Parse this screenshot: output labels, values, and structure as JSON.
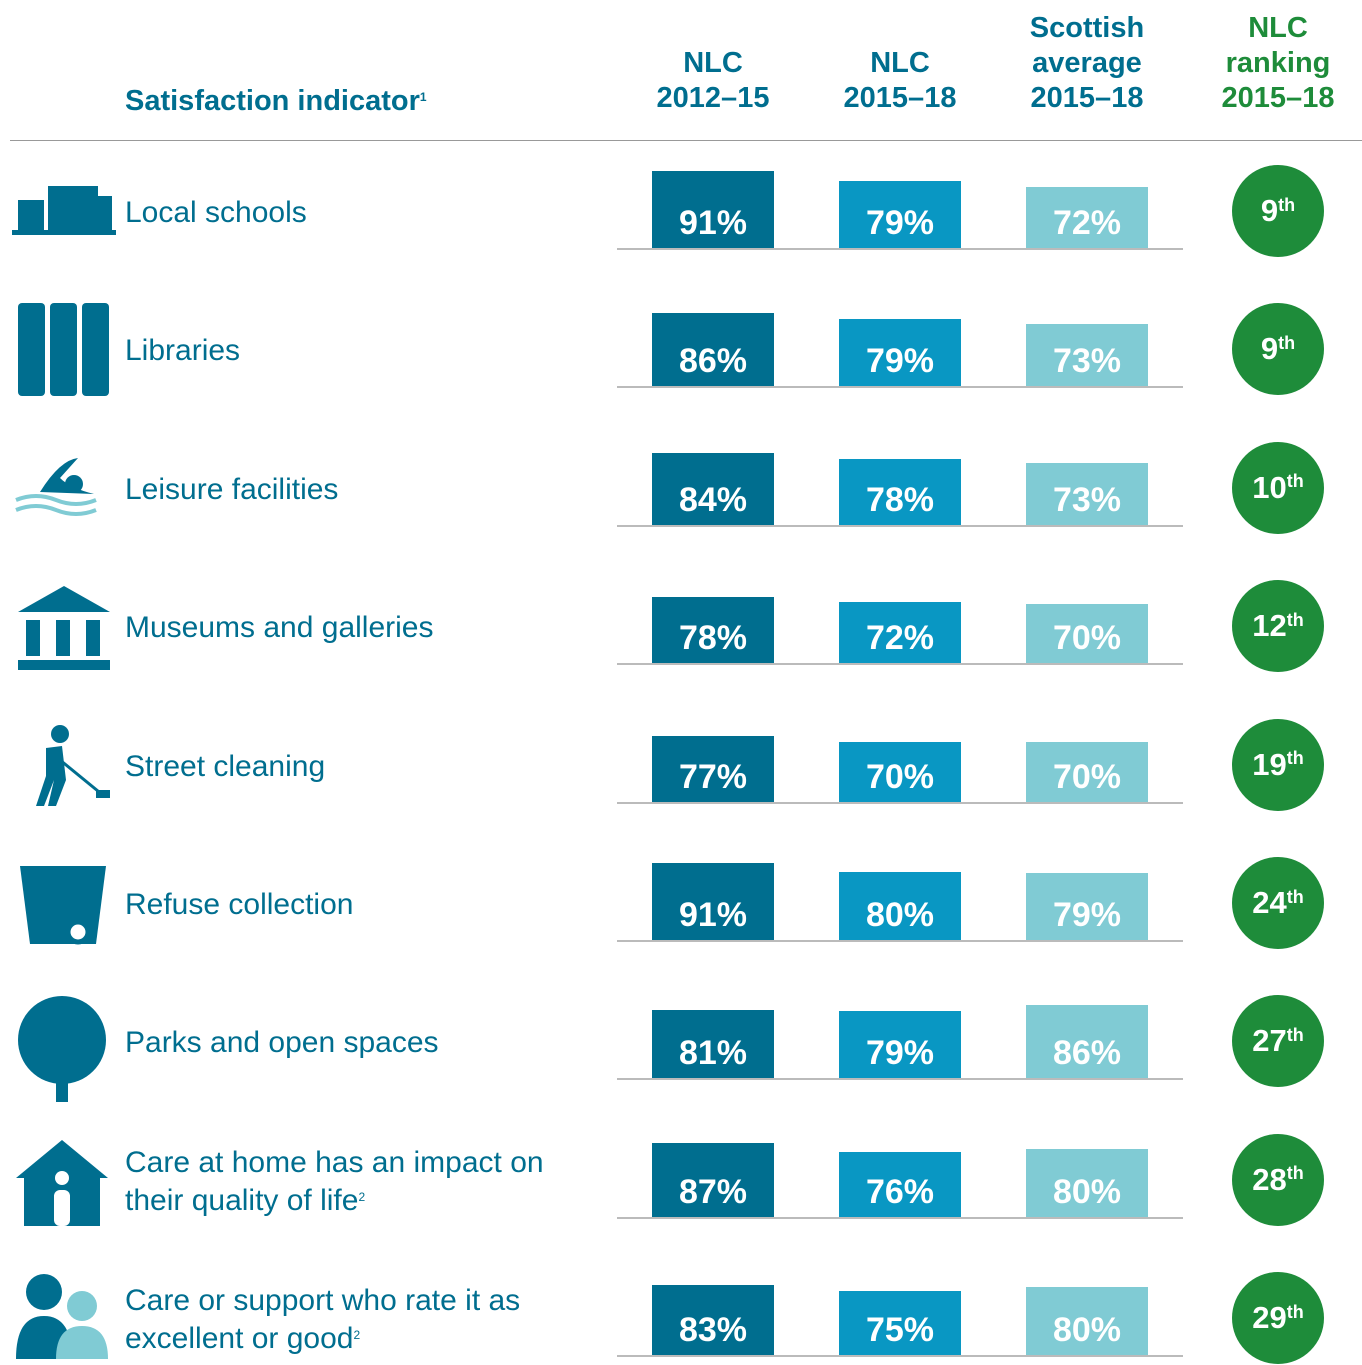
{
  "chart_data": {
    "type": "bar",
    "header": {
      "indicator": "Satisfaction indicator",
      "indicator_note": "1",
      "columns": [
        [
          "NLC",
          "2012–15"
        ],
        [
          "NLC",
          "2015–18"
        ],
        [
          "Scottish",
          "average",
          "2015–18"
        ],
        [
          "NLC",
          "ranking",
          "2015–18"
        ]
      ]
    },
    "categories": [
      "Local schools",
      "Libraries",
      "Leisure facilities",
      "Museums and galleries",
      "Street cleaning",
      "Refuse collection",
      "Parks and open spaces",
      "Care at home has an impact on their quality of life",
      "Care or support who rate it as excellent or good"
    ],
    "category_notes": [
      null,
      null,
      null,
      null,
      null,
      null,
      null,
      "2",
      "2"
    ],
    "series": [
      {
        "name": "NLC 2012–15",
        "color": "#006e8f",
        "values": [
          91,
          86,
          84,
          78,
          77,
          91,
          81,
          87,
          83
        ],
        "value_labels": [
          "91%",
          "86%",
          "84%",
          "78%",
          "77%",
          "91%",
          "81%",
          "87%",
          "83%"
        ]
      },
      {
        "name": "NLC 2015–18",
        "color": "#0997c3",
        "values": [
          79,
          79,
          78,
          72,
          70,
          80,
          79,
          76,
          75
        ],
        "value_labels": [
          "79%",
          "79%",
          "78%",
          "72%",
          "70%",
          "80%",
          "79%",
          "76%",
          "75%"
        ]
      },
      {
        "name": "Scottish average 2015–18",
        "color": "#80cbd4",
        "values": [
          72,
          73,
          73,
          70,
          70,
          79,
          86,
          80,
          80
        ],
        "value_labels": [
          "72%",
          "73%",
          "73%",
          "70%",
          "70%",
          "79%",
          "86%",
          "80%",
          "80%"
        ]
      }
    ],
    "rankings": {
      "color": "#1e8c3a",
      "numbers": [
        "9",
        "9",
        "10",
        "12",
        "19",
        "24",
        "27",
        "28",
        "29"
      ],
      "suffixes": [
        "th",
        "th",
        "th",
        "th",
        "th",
        "th",
        "th",
        "th",
        "th"
      ]
    },
    "ylim": [
      0,
      100
    ]
  }
}
